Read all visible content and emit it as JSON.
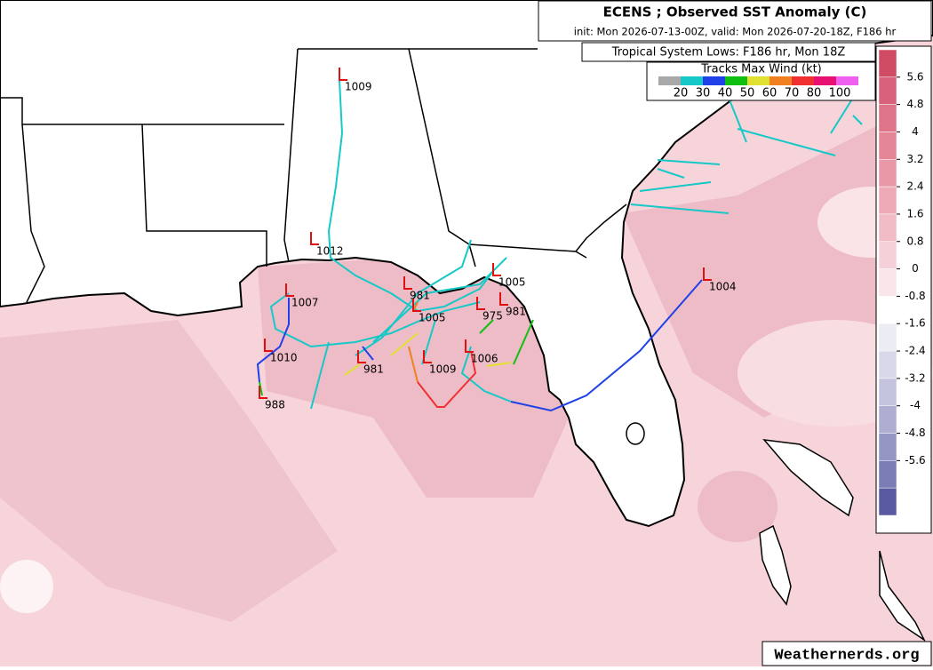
{
  "header": {
    "title": "ECENS ; Observed SST Anomaly (C)",
    "subtitle": "init: Mon 2026-07-13-00Z, valid: Mon 2026-07-20-18Z, F186 hr",
    "lows_title": "Tropical System Lows: F186 hr, Mon 18Z"
  },
  "wind_legend": {
    "title": "Tracks Max Wind (kt)",
    "labels": [
      20,
      30,
      40,
      50,
      60,
      70,
      80,
      100
    ],
    "colors": [
      "#a8a8a8",
      "#16c8c8",
      "#2040e8",
      "#10c010",
      "#e0e030",
      "#f08020",
      "#f03030",
      "#e81070",
      "#f060f0"
    ]
  },
  "colorbar": {
    "labels": [
      5.6,
      4.8,
      4,
      3.2,
      2.4,
      1.6,
      0.8,
      0,
      -0.8,
      -1.6,
      -2.4,
      -3.2,
      -4,
      -4.8,
      -5.6
    ],
    "colors": [
      "#d04c64",
      "#d8627a",
      "#de7488",
      "#e48696",
      "#e898a6",
      "#eeaab6",
      "#f2bcc6",
      "#f6d0d8",
      "#fae6ea",
      "#ffffff",
      "#ececf4",
      "#d8d8ea",
      "#c4c4de",
      "#aeaed2",
      "#9696c4",
      "#7c7cb6",
      "#5a5aa2"
    ]
  },
  "lows": [
    "1009",
    "1012",
    "1007",
    "1010",
    "988",
    "981",
    "1005",
    "975",
    "981",
    "1005",
    "1004",
    "981",
    "1009",
    "1006"
  ],
  "watermark": "Weathernerds.org"
}
